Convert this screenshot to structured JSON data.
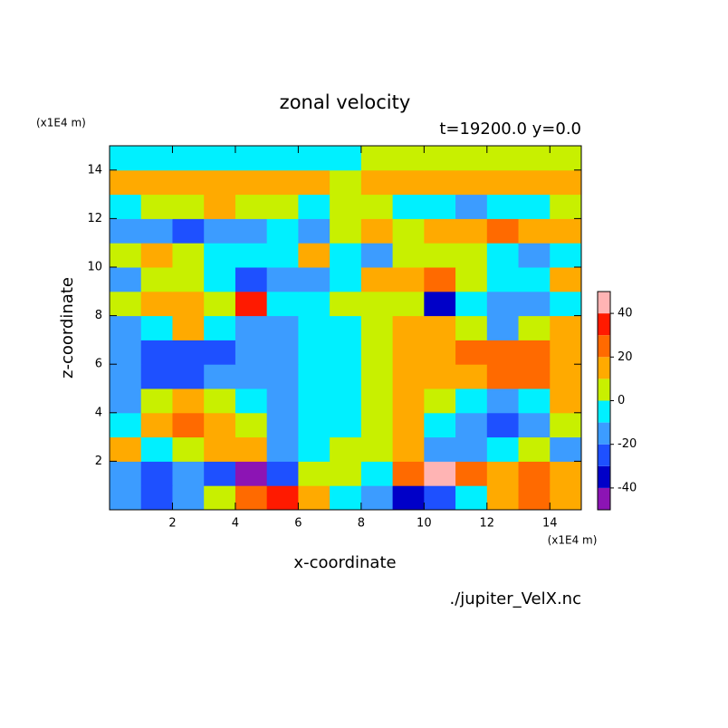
{
  "chart_data": {
    "type": "contour",
    "title": "zonal velocity",
    "subtitle": "t=19200.0 y=0.0",
    "x_label": "x-coordinate",
    "y_label": "z-coordinate",
    "x_unit": "(x1E4 m)",
    "y_unit": "(x1E4 m)",
    "source": "./jupiter_VelX.nc",
    "xlim": [
      0,
      15
    ],
    "ylim": [
      0,
      15
    ],
    "xticks": [
      2,
      4,
      6,
      8,
      10,
      12,
      14
    ],
    "yticks": [
      2,
      4,
      6,
      8,
      10,
      12,
      14
    ],
    "x": [
      0.5,
      1.5,
      2.5,
      3.5,
      4.5,
      5.5,
      6.5,
      7.5,
      8.5,
      9.5,
      10.5,
      11.5,
      12.5,
      13.5,
      14.5
    ],
    "y": [
      0.5,
      1.5,
      2.5,
      3.5,
      4.5,
      5.5,
      6.5,
      7.5,
      8.5,
      9.5,
      10.5,
      11.5,
      12.5,
      13.5,
      14.5
    ],
    "z": [
      [
        -15,
        -25,
        -15,
        5,
        25,
        35,
        15,
        -5,
        -15,
        -35,
        -25,
        -5,
        15,
        25,
        15
      ],
      [
        -15,
        -25,
        -15,
        -25,
        -45,
        -25,
        5,
        5,
        -5,
        25,
        45,
        25,
        15,
        25,
        15
      ],
      [
        15,
        -5,
        5,
        15,
        15,
        -15,
        -5,
        5,
        5,
        15,
        -15,
        -15,
        -5,
        5,
        -15
      ],
      [
        -5,
        15,
        25,
        15,
        5,
        -15,
        -5,
        -5,
        5,
        15,
        -5,
        -15,
        -25,
        -15,
        5
      ],
      [
        -15,
        5,
        15,
        5,
        -5,
        -15,
        -5,
        -5,
        5,
        15,
        5,
        -5,
        -15,
        -5,
        15
      ],
      [
        -15,
        -25,
        -25,
        -15,
        -15,
        -15,
        -5,
        -5,
        5,
        15,
        15,
        15,
        25,
        25,
        15
      ],
      [
        -15,
        -25,
        -25,
        -25,
        -15,
        -15,
        -5,
        -5,
        5,
        15,
        15,
        25,
        25,
        25,
        15
      ],
      [
        -15,
        -5,
        15,
        -5,
        -15,
        -15,
        -5,
        -5,
        5,
        15,
        15,
        5,
        -15,
        5,
        15
      ],
      [
        5,
        15,
        15,
        5,
        35,
        -5,
        -5,
        5,
        5,
        5,
        -35,
        -5,
        -15,
        -15,
        -5
      ],
      [
        -15,
        5,
        5,
        -5,
        -25,
        -15,
        -15,
        -5,
        15,
        15,
        25,
        5,
        -5,
        -5,
        15
      ],
      [
        5,
        15,
        5,
        -5,
        -5,
        -5,
        15,
        -5,
        -15,
        5,
        5,
        5,
        -5,
        -15,
        -5
      ],
      [
        -15,
        -15,
        -25,
        -15,
        -15,
        -5,
        -15,
        5,
        15,
        5,
        15,
        15,
        25,
        15,
        15
      ],
      [
        -5,
        5,
        5,
        15,
        5,
        5,
        -5,
        5,
        5,
        -5,
        -5,
        -15,
        -5,
        -5,
        5
      ],
      [
        15,
        15,
        15,
        15,
        15,
        15,
        15,
        5,
        15,
        15,
        15,
        15,
        15,
        15,
        15
      ],
      [
        -5,
        -5,
        -5,
        -5,
        -5,
        -5,
        -5,
        -5,
        5,
        5,
        5,
        5,
        5,
        5,
        5
      ]
    ],
    "levels": [
      -50,
      -40,
      -30,
      -20,
      -10,
      0,
      10,
      20,
      30,
      40,
      50
    ],
    "colors": [
      "#8c14b4",
      "#0000c8",
      "#1e50ff",
      "#3c9cff",
      "#00f0ff",
      "#c8f000",
      "#ffaa00",
      "#ff6a00",
      "#ff1a00",
      "#ffb4b4"
    ],
    "colorbar_ticks": [
      -40,
      -20,
      0,
      20,
      40
    ]
  }
}
